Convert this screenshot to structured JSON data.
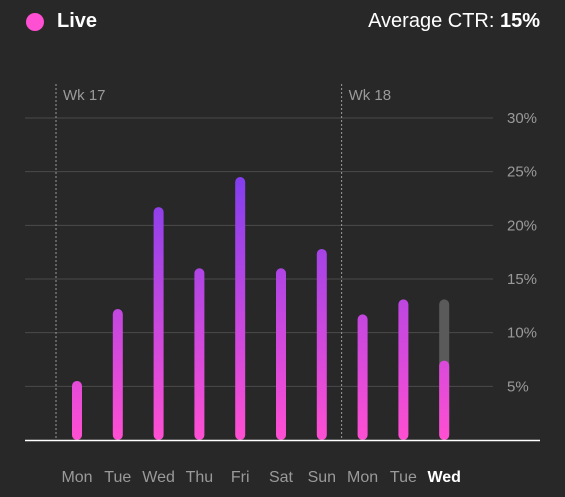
{
  "header": {
    "live_label": "Live",
    "ctr_label": "Average CTR: ",
    "ctr_value": "15%"
  },
  "colors": {
    "live_dot": "#ff4fd2",
    "bar_top": "#7a3df0",
    "bar_bottom": "#ff4fd2",
    "projection": "#5a5a5a",
    "background": "#282828"
  },
  "chart_data": {
    "type": "bar",
    "categories": [
      "Mon",
      "Tue",
      "Wed",
      "Thu",
      "Fri",
      "Sat",
      "Sun",
      "Mon",
      "Tue",
      "Wed"
    ],
    "values": [
      5.5,
      12.2,
      21.7,
      16.0,
      24.5,
      16.0,
      17.8,
      11.7,
      13.1,
      7.4
    ],
    "projected_current": 13.1,
    "current_index": 9,
    "yticks": [
      "5%",
      "10%",
      "15%",
      "20%",
      "25%",
      "30%"
    ],
    "ytick_values": [
      5,
      10,
      15,
      20,
      25,
      30
    ],
    "ylim": [
      0,
      30
    ],
    "grid": true,
    "week_markers": [
      {
        "label": "Wk 17",
        "start_index": 0
      },
      {
        "label": "Wk 18",
        "start_index": 7
      }
    ]
  }
}
